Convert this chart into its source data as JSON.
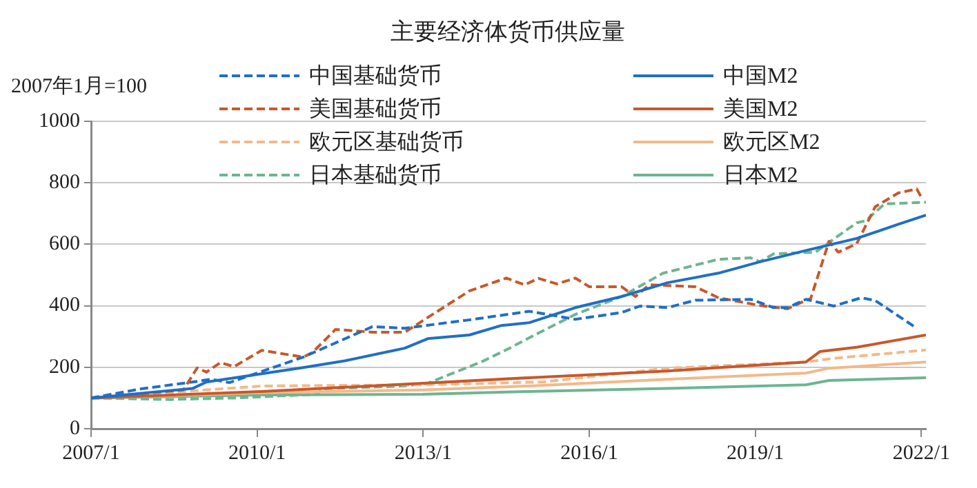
{
  "chart_data": {
    "type": "line",
    "title": "主要经济体货币供应量",
    "ylabel": "2007年1月=100",
    "xlim": [
      "2007-01",
      "2022-02"
    ],
    "xticks": [
      {
        "value": "2007-01",
        "label": "2007/1"
      },
      {
        "value": "2010-01",
        "label": "2010/1"
      },
      {
        "value": "2013-01",
        "label": "2013/1"
      },
      {
        "value": "2016-01",
        "label": "2016/1"
      },
      {
        "value": "2019-01",
        "label": "2019/1"
      },
      {
        "value": "2022-01",
        "label": "2022/1"
      }
    ],
    "ylim": [
      0,
      1000
    ],
    "yticks": [
      0,
      200,
      400,
      600,
      800,
      1000
    ],
    "grid": "y",
    "legend": "top",
    "marker": "none",
    "series": [
      {
        "name": "中国基础货币",
        "color": "#1f6fc5",
        "line_style": "dashed",
        "x": [
          "2007-01",
          "2007-12",
          "2008-11",
          "2009-03",
          "2009-07",
          "2010-11",
          "2012-02",
          "2012-09",
          "2013-11",
          "2014-12",
          "2015-10",
          "2016-08",
          "2016-12",
          "2017-06",
          "2017-12",
          "2018-12",
          "2019-05",
          "2019-08",
          "2019-12",
          "2020-06",
          "2020-12",
          "2021-03",
          "2021-12"
        ],
        "values": [
          100,
          130,
          152,
          161,
          150,
          233,
          332,
          327,
          354,
          382,
          356,
          378,
          399,
          394,
          418,
          421,
          394,
          394,
          421,
          399,
          426,
          417,
          327
        ]
      },
      {
        "name": "中国M2",
        "color": "#1f6fc5",
        "line_style": "solid",
        "x": [
          "2007-01",
          "2008-11",
          "2009-02",
          "2010-02",
          "2010-11",
          "2011-08",
          "2012-09",
          "2013-02",
          "2013-11",
          "2014-06",
          "2014-12",
          "2015-10",
          "2016-08",
          "2017-06",
          "2018-05",
          "2019-02",
          "2019-12",
          "2020-11",
          "2021-08",
          "2022-02"
        ],
        "values": [
          100,
          131,
          152,
          179,
          199,
          221,
          262,
          293,
          305,
          336,
          345,
          394,
          430,
          475,
          506,
          543,
          580,
          619,
          665,
          695
        ]
      },
      {
        "name": "美国基础货币",
        "color": "#c8582a",
        "line_style": "dashed",
        "x": [
          "2007-01",
          "2008-09",
          "2008-12",
          "2009-02",
          "2009-05",
          "2009-08",
          "2010-02",
          "2010-11",
          "2011-01",
          "2011-06",
          "2012-02",
          "2012-09",
          "2013-11",
          "2014-07",
          "2014-11",
          "2015-02",
          "2015-06",
          "2015-10",
          "2016-01",
          "2016-08",
          "2016-11",
          "2017-02",
          "2017-12",
          "2018-05",
          "2019-02",
          "2019-08",
          "2019-12",
          "2020-01",
          "2020-05",
          "2020-07",
          "2020-11",
          "2021-03",
          "2021-08",
          "2021-12",
          "2022-01"
        ],
        "values": [
          100,
          126,
          198,
          184,
          215,
          202,
          255,
          233,
          248,
          323,
          314,
          314,
          448,
          490,
          468,
          489,
          471,
          490,
          462,
          462,
          430,
          468,
          462,
          426,
          401,
          390,
          418,
          423,
          610,
          574,
          602,
          722,
          767,
          780,
          753
        ]
      },
      {
        "name": "美国M2",
        "color": "#c8582a",
        "line_style": "solid",
        "x": [
          "2007-01",
          "2010-02",
          "2013-01",
          "2014-12",
          "2017-06",
          "2019-12",
          "2020-03",
          "2020-11",
          "2022-02"
        ],
        "values": [
          100,
          121,
          148,
          166,
          188,
          217,
          251,
          265,
          305
        ]
      },
      {
        "name": "欧元区基础货币",
        "color": "#f2b98a",
        "line_style": "dashed",
        "x": [
          "2007-01",
          "2010-02",
          "2013-01",
          "2015-03",
          "2017-06",
          "2019-12",
          "2020-06",
          "2022-02"
        ],
        "values": [
          100,
          139,
          143,
          152,
          197,
          217,
          229,
          256
        ]
      },
      {
        "name": "欧元区M2",
        "color": "#f2b98a",
        "line_style": "solid",
        "x": [
          "2007-01",
          "2010-02",
          "2013-01",
          "2014-12",
          "2017-06",
          "2019-12",
          "2020-05",
          "2022-02"
        ],
        "values": [
          100,
          117,
          126,
          139,
          161,
          181,
          197,
          217
        ]
      },
      {
        "name": "日本基础货币",
        "color": "#6db592",
        "line_style": "dashed",
        "x": [
          "2007-01",
          "2008-06",
          "2009-08",
          "2011-02",
          "2011-03",
          "2012-09",
          "2013-02",
          "2014-02",
          "2014-08",
          "2014-12",
          "2015-10",
          "2016-08",
          "2017-05",
          "2018-05",
          "2018-12",
          "2019-02",
          "2019-05",
          "2020-02",
          "2020-11",
          "2021-01",
          "2021-05",
          "2022-02"
        ],
        "values": [
          100,
          95,
          100,
          112,
          130,
          139,
          148,
          220,
          264,
          296,
          372,
          430,
          506,
          551,
          556,
          543,
          569,
          574,
          670,
          677,
          731,
          737
        ]
      },
      {
        "name": "日本M2",
        "color": "#6db592",
        "line_style": "solid",
        "x": [
          "2007-01",
          "2010-02",
          "2013-01",
          "2014-12",
          "2017-06",
          "2019-12",
          "2020-05",
          "2022-02"
        ],
        "values": [
          100,
          110,
          112,
          121,
          131,
          143,
          157,
          166
        ]
      }
    ]
  }
}
